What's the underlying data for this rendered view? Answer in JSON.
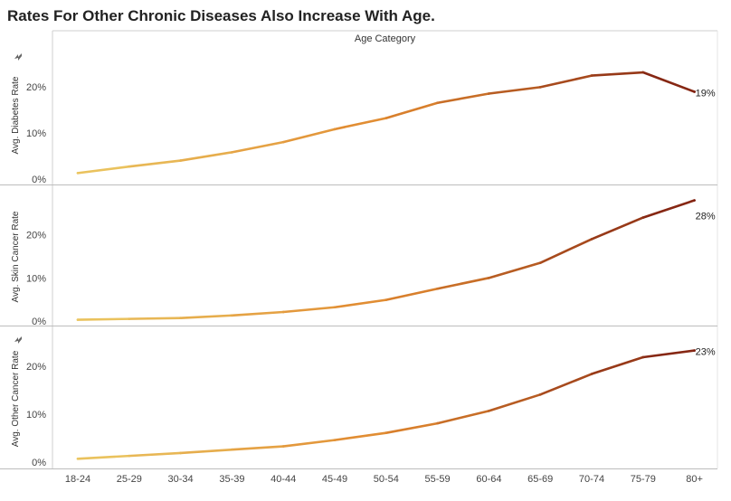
{
  "title": "Rates For Other Chronic Diseases Also Increase With Age.",
  "colors": {
    "low": "#EBC761",
    "mid": "#E0882F",
    "high": "#7E1E10",
    "axis": "#888888",
    "grid": "#e6e6e6"
  },
  "chart_data": {
    "type": "line",
    "column_header": "Age Category",
    "categories": [
      "18-24",
      "25-29",
      "30-34",
      "35-39",
      "40-44",
      "45-49",
      "50-54",
      "55-59",
      "60-64",
      "65-69",
      "70-74",
      "75-79",
      "80+"
    ],
    "panels": [
      {
        "ylabel": "Avg. Diabetes Rate",
        "sort_icon": "sort-icon",
        "yticks": [
          "0%",
          "10%",
          "20%"
        ],
        "ylim": [
          0,
          28
        ],
        "values": [
          1.3,
          2.7,
          4.0,
          5.8,
          8.0,
          10.8,
          13.2,
          16.5,
          18.5,
          19.9,
          22.4,
          23.1,
          18.9
        ],
        "end_label": "19%"
      },
      {
        "ylabel": "Avg. Skin Cancer Rate",
        "yticks": [
          "0%",
          "10%",
          "20%"
        ],
        "ylim": [
          0,
          30
        ],
        "values": [
          0.3,
          0.5,
          0.7,
          1.3,
          2.1,
          3.2,
          4.9,
          7.5,
          10.0,
          13.5,
          19.0,
          24.0,
          28.0
        ],
        "end_label": "28%"
      },
      {
        "ylabel": "Avg. Other Cancer Rate",
        "sort_icon": "sort-icon",
        "yticks": [
          "0%",
          "10%",
          "20%"
        ],
        "ylim": [
          0,
          27
        ],
        "values": [
          0.7,
          1.3,
          1.9,
          2.6,
          3.3,
          4.6,
          6.1,
          8.1,
          10.7,
          14.1,
          18.4,
          21.9,
          23.3
        ],
        "end_label": "23%"
      }
    ]
  }
}
